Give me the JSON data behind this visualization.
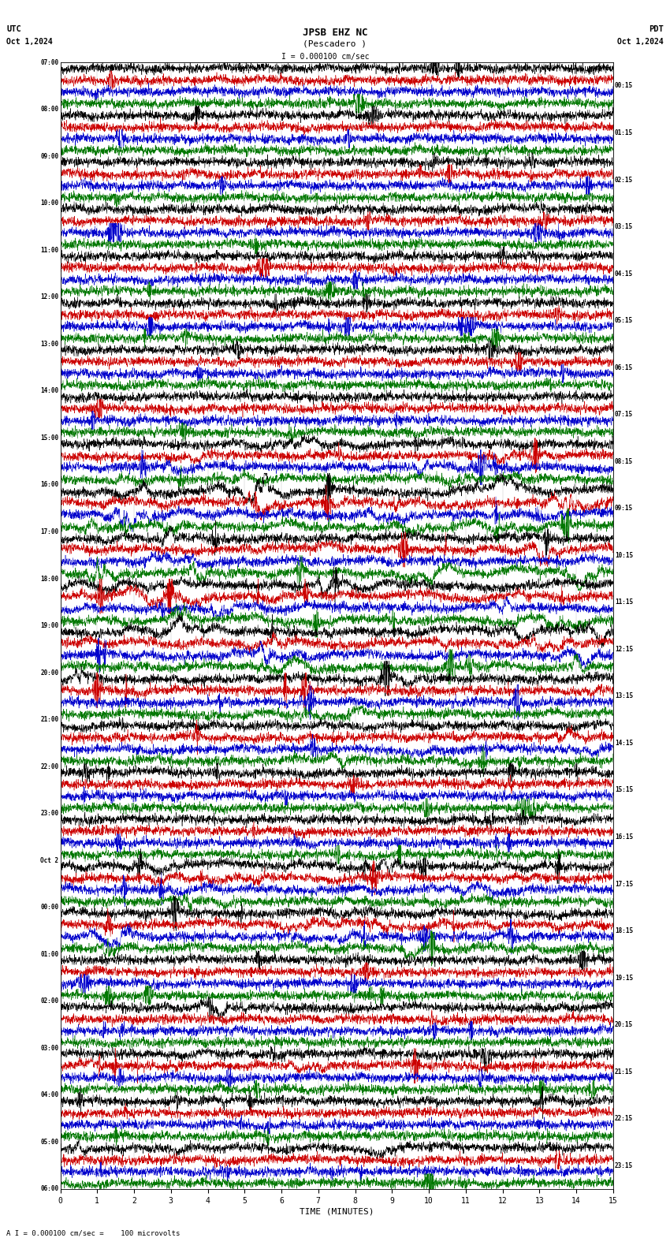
{
  "title_line1": "JPSB EHZ NC",
  "title_line2": "(Pescadero )",
  "scale_text": "I = 0.000100 cm/sec",
  "utc_label": "UTC",
  "pdt_label": "PDT",
  "date_left": "Oct 1,2024",
  "date_right": "Oct 1,2024",
  "bottom_note": "A I = 0.000100 cm/sec =    100 microvolts",
  "left_times": [
    "07:00",
    "08:00",
    "09:00",
    "10:00",
    "11:00",
    "12:00",
    "13:00",
    "14:00",
    "15:00",
    "16:00",
    "17:00",
    "18:00",
    "19:00",
    "20:00",
    "21:00",
    "22:00",
    "23:00",
    "Oct 2",
    "00:00",
    "01:00",
    "02:00",
    "03:00",
    "04:00",
    "05:00",
    "06:00"
  ],
  "right_times": [
    "00:15",
    "01:15",
    "02:15",
    "03:15",
    "04:15",
    "05:15",
    "06:15",
    "07:15",
    "08:15",
    "09:15",
    "10:15",
    "11:15",
    "12:15",
    "13:15",
    "14:15",
    "15:15",
    "16:15",
    "17:15",
    "18:15",
    "19:15",
    "20:15",
    "21:15",
    "22:15",
    "23:15"
  ],
  "num_rows": 96,
  "xlim": [
    0,
    15
  ],
  "xlabel": "TIME (MINUTES)",
  "bg_color": "white",
  "trace_color_black": "#000000",
  "trace_color_red": "#cc0000",
  "trace_color_green": "#007700",
  "trace_color_blue": "#0000cc",
  "seed": 42
}
